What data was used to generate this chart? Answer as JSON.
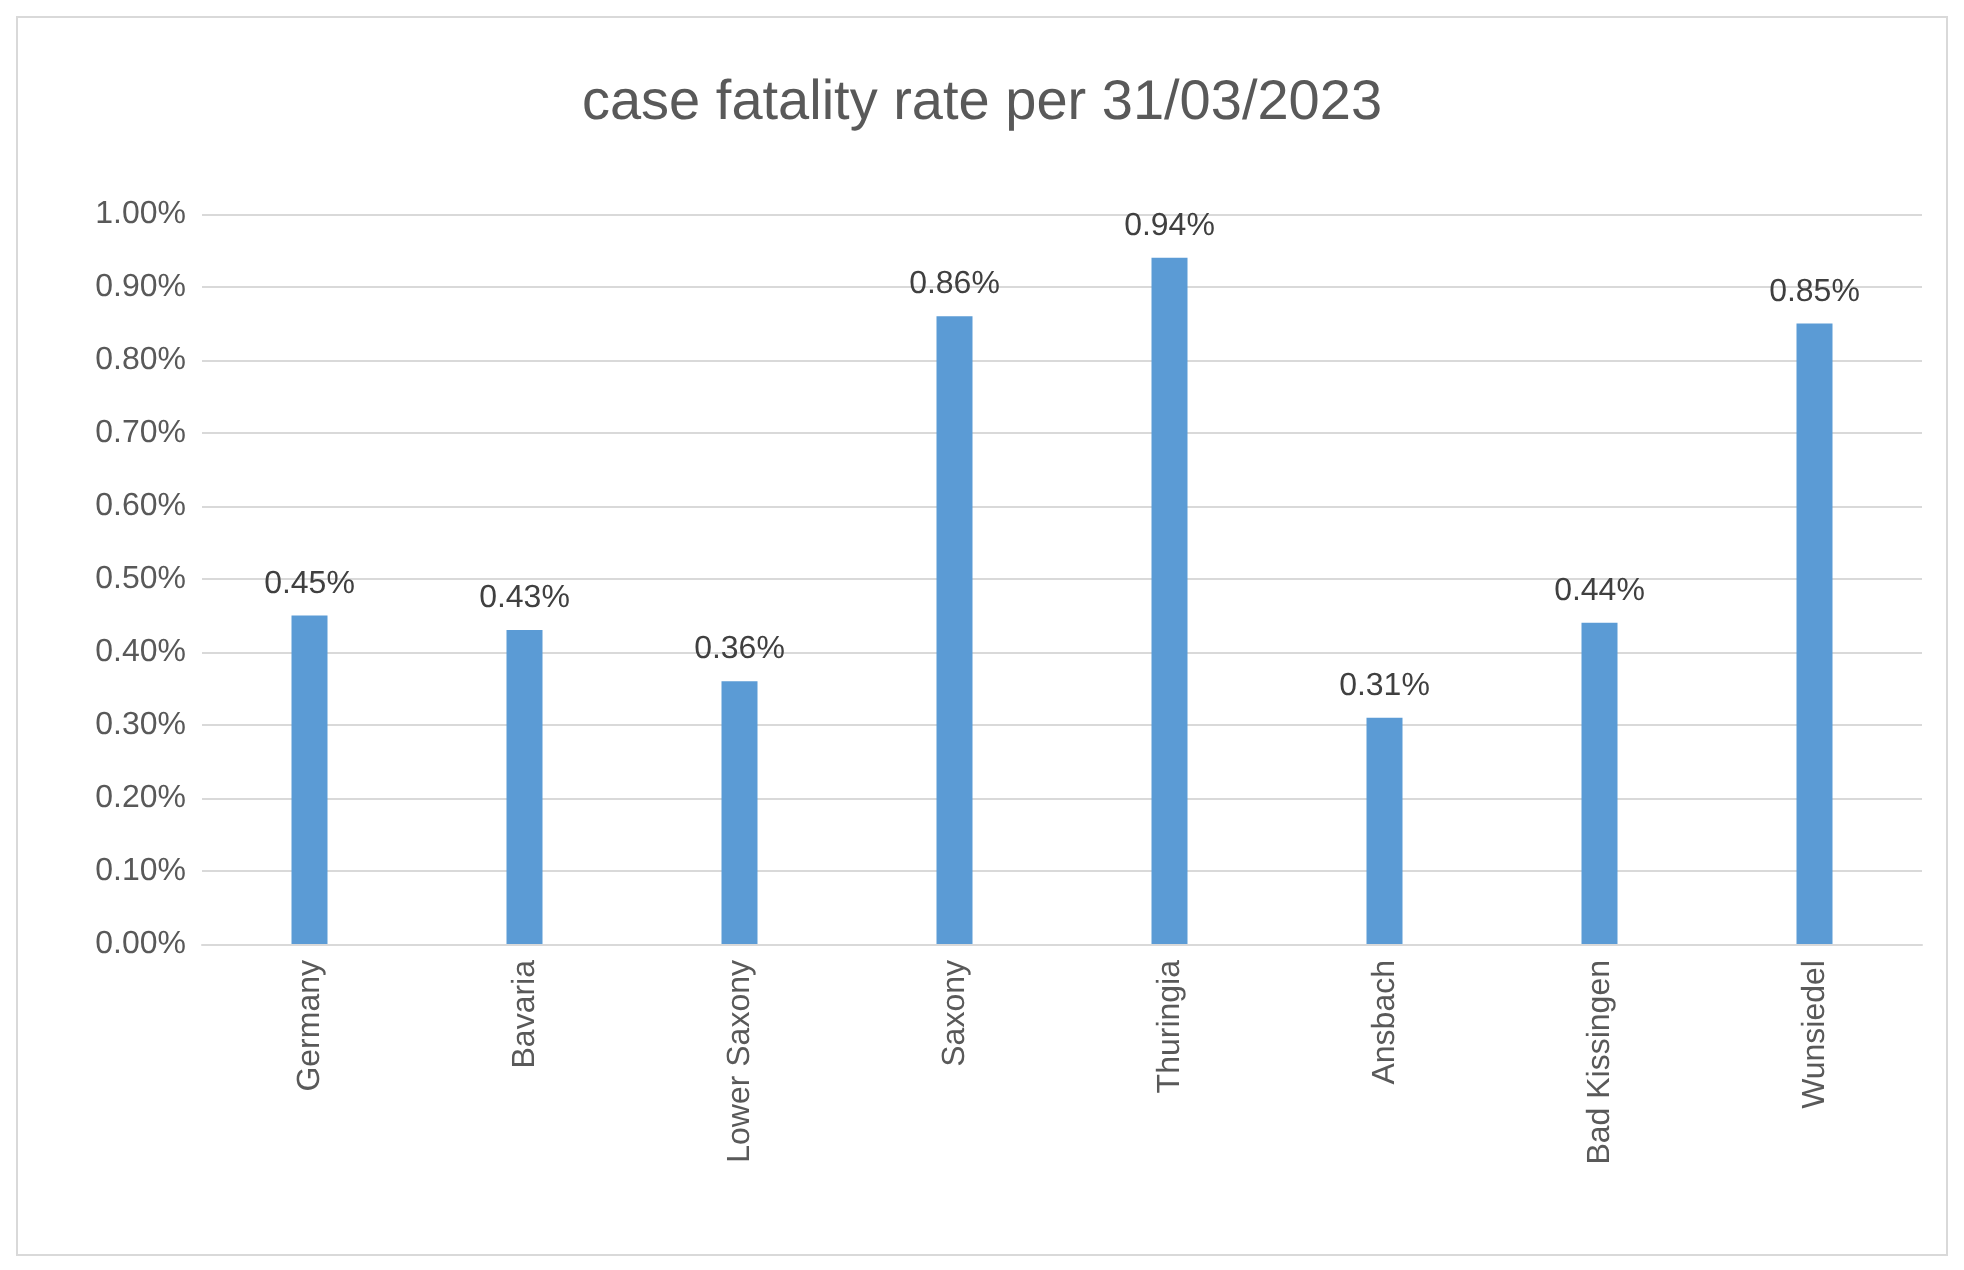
{
  "chart_data": {
    "type": "bar",
    "title": "case fatality rate per 31/03/2023",
    "categories": [
      "Germany",
      "Bavaria",
      "Lower Saxony",
      "Saxony",
      "Thuringia",
      "Ansbach",
      "Bad Kissingen",
      "Wunsiedel"
    ],
    "values": [
      0.45,
      0.43,
      0.36,
      0.86,
      0.94,
      0.31,
      0.44,
      0.85
    ],
    "value_labels": [
      "0.45%",
      "0.43%",
      "0.36%",
      "0.86%",
      "0.94%",
      "0.31%",
      "0.44%",
      "0.85%"
    ],
    "color": "#5b9bd5",
    "ylim": [
      0,
      1
    ],
    "yticks": [
      {
        "value": 0,
        "label": "0.00%"
      },
      {
        "value": 0.1,
        "label": "0.10%"
      },
      {
        "value": 0.2,
        "label": "0.20%"
      },
      {
        "value": 0.3,
        "label": "0.30%"
      },
      {
        "value": 0.4,
        "label": "0.40%"
      },
      {
        "value": 0.5,
        "label": "0.50%"
      },
      {
        "value": 0.6,
        "label": "0.60%"
      },
      {
        "value": 0.7,
        "label": "0.70%"
      },
      {
        "value": 0.8,
        "label": "0.80%"
      },
      {
        "value": 0.9,
        "label": "0.90%"
      },
      {
        "value": 1,
        "label": "1.00%"
      }
    ],
    "grid": "y"
  }
}
